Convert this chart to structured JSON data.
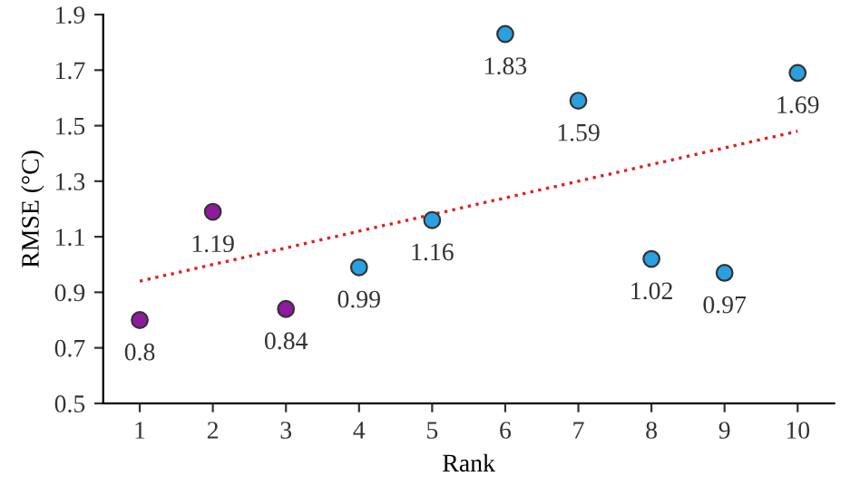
{
  "chart_data": {
    "type": "scatter",
    "xlabel": "Rank",
    "ylabel": "RMSE (°C)",
    "categories": [
      "1",
      "2",
      "3",
      "4",
      "5",
      "6",
      "7",
      "8",
      "9",
      "10"
    ],
    "series": [
      {
        "values": [
          0.8,
          1.19,
          0.84,
          0.99,
          1.16,
          1.83,
          1.59,
          1.02,
          0.97,
          1.69
        ],
        "colors": [
          "#8e1a9e",
          "#8e1a9e",
          "#8e1a9e",
          "#2aa0e0",
          "#2aa0e0",
          "#2aa0e0",
          "#2aa0e0",
          "#2aa0e0",
          "#2aa0e0",
          "#2aa0e0"
        ],
        "marker": "circle",
        "data_labels": true
      },
      {
        "type": "line",
        "color": "#e02020",
        "line_style": "dotted",
        "marker": "none",
        "values": [
          0.94,
          1.0,
          1.06,
          1.12,
          1.18,
          1.24,
          1.3,
          1.36,
          1.42,
          1.48
        ]
      }
    ],
    "ylim": [
      0.5,
      1.9
    ],
    "yticks": [
      0.5,
      0.7,
      0.9,
      1.1,
      1.3,
      1.5,
      1.7,
      1.9
    ],
    "grid": false,
    "legend": false
  }
}
